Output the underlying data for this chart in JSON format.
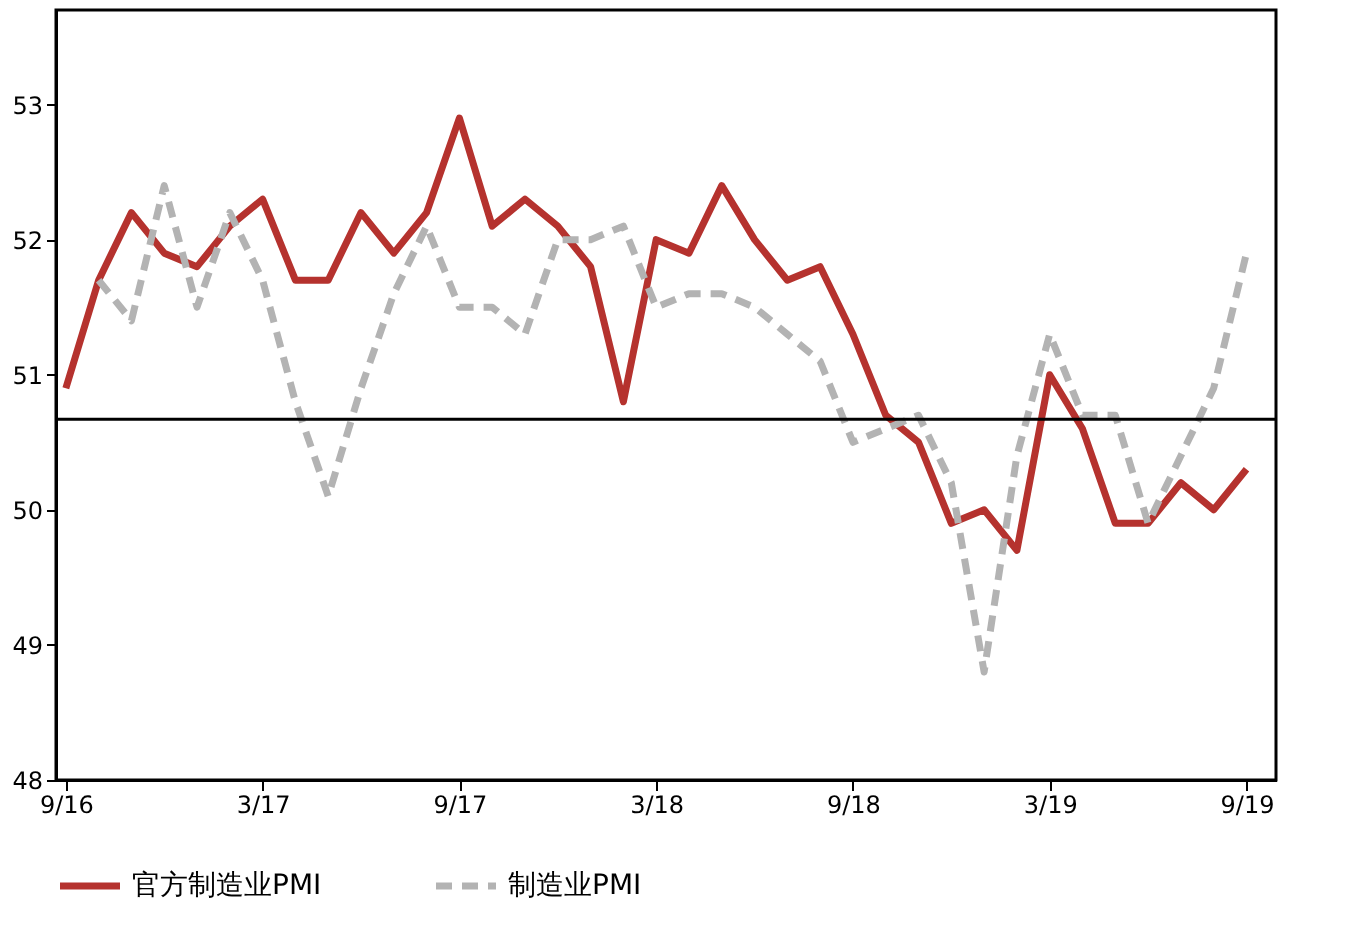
{
  "chart_data": {
    "type": "line",
    "categories": [
      "9/16",
      null,
      null,
      null,
      null,
      null,
      "3/17",
      null,
      null,
      null,
      null,
      null,
      "9/17",
      null,
      null,
      null,
      null,
      null,
      "3/18",
      null,
      null,
      null,
      null,
      null,
      "9/18",
      null,
      null,
      null,
      null,
      null,
      "3/19",
      null,
      null,
      null,
      null,
      null,
      "9/19"
    ],
    "series": [
      {
        "name": "官方制造业PMI",
        "color": "#b5322e",
        "line_style": "solid",
        "values": [
          50.9,
          51.7,
          52.2,
          51.9,
          51.8,
          52.1,
          52.3,
          51.7,
          51.7,
          52.2,
          51.9,
          52.2,
          52.9,
          52.1,
          52.3,
          52.1,
          51.8,
          50.8,
          52.0,
          51.9,
          52.4,
          52.0,
          51.7,
          51.8,
          51.3,
          50.7,
          50.5,
          49.9,
          50.0,
          49.7,
          51.0,
          50.6,
          49.9,
          49.9,
          50.2,
          50.0,
          50.3
        ]
      },
      {
        "name": "制造业PMI",
        "color": "#b3b3b3",
        "line_style": "dashed",
        "values": [
          null,
          51.7,
          51.4,
          52.4,
          51.5,
          52.2,
          51.7,
          50.8,
          50.1,
          50.9,
          51.6,
          52.1,
          51.5,
          51.5,
          51.3,
          52.0,
          52.0,
          52.1,
          51.5,
          51.6,
          51.6,
          51.5,
          51.3,
          51.1,
          50.5,
          50.6,
          50.7,
          50.2,
          48.8,
          50.4,
          51.3,
          50.7,
          50.7,
          49.9,
          50.4,
          50.9,
          51.9
        ]
      }
    ],
    "ylim": [
      48,
      53.7
    ],
    "yticks": [
      48,
      49,
      50,
      51,
      52,
      53
    ],
    "ref_lines": [
      {
        "axis": "y",
        "value": 50.67,
        "color": "#000000"
      }
    ],
    "grid": false,
    "legend": "bottom",
    "marker": "none"
  }
}
